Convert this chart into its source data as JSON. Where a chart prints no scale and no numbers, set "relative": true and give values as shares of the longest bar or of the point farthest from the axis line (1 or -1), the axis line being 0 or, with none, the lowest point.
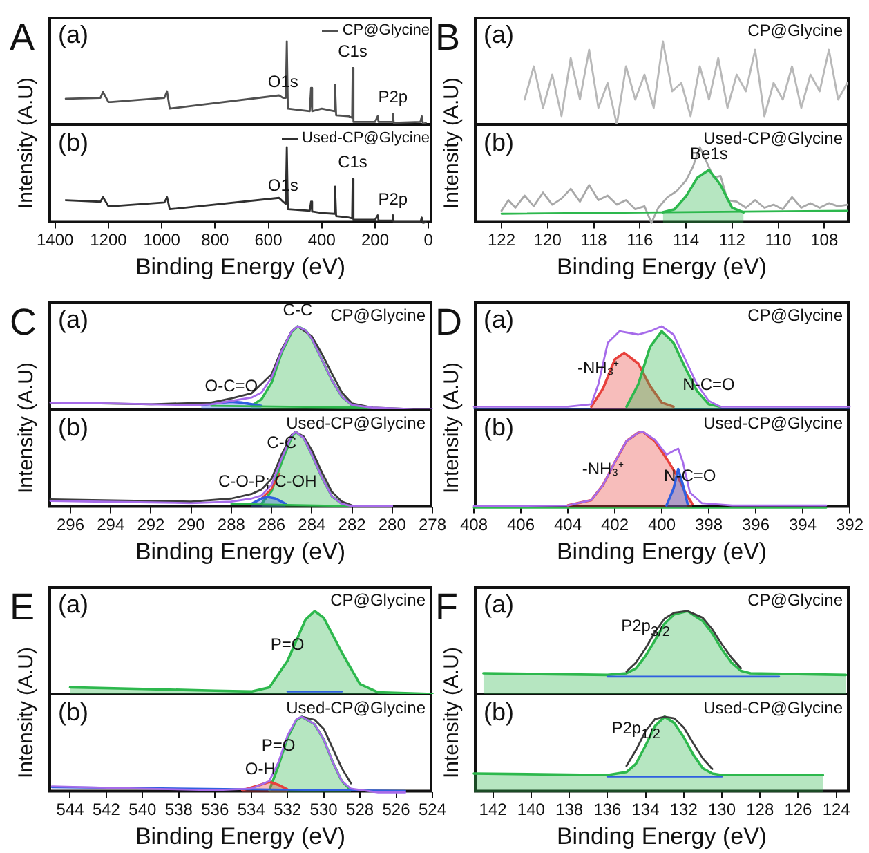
{
  "chart_data": [
    {
      "type": "line",
      "relative": true,
      "title": "A",
      "ylabel": "Intensity (A.U)",
      "xlim": [
        1425,
        -15
      ],
      "tick_labels": false,
      "legend": "top right",
      "annotations": [
        "(a)",
        {
          "text": "O1s",
          "x": 545,
          "y": 0.32
        },
        {
          "text": "C1s",
          "x": 284,
          "y": 0.68
        },
        {
          "text": "P2p",
          "x": 133,
          "y": 0.13
        }
      ],
      "series": [
        {
          "name": "CP@Glycine",
          "color": "#505050",
          "x": [
            1360,
            1230,
            1220,
            1200,
            1190,
            990,
            980,
            970,
            560,
            545,
            535,
            531,
            527,
            445,
            440,
            436,
            400,
            352,
            350,
            346,
            300,
            286,
            284,
            281,
            200,
            190,
            187,
            135,
            133,
            130,
            30,
            25,
            20,
            10
          ],
          "values": [
            0.31,
            0.32,
            0.39,
            0.27,
            0.27,
            0.32,
            0.4,
            0.19,
            0.35,
            0.32,
            0.32,
            1,
            0.19,
            0.16,
            0.44,
            0.16,
            0.19,
            0.16,
            0.48,
            0.11,
            0.1,
            0.08,
            0.68,
            0.03,
            0.03,
            0.1,
            0.03,
            0.03,
            0.13,
            0.02,
            0.03,
            0.1,
            0,
            0.02
          ]
        }
      ]
    },
    {
      "type": "line",
      "relative": true,
      "xlabel": "Binding Energy (eV)",
      "xlim": [
        1425,
        -15
      ],
      "xticks": [
        1400,
        1200,
        1000,
        800,
        600,
        400,
        200,
        0
      ],
      "tick_labels": "x",
      "legend": "top right",
      "annotations": [
        "(b)",
        {
          "text": "O1s",
          "x": 545,
          "y": 0.28
        },
        {
          "text": "C1s",
          "x": 284,
          "y": 0.58
        },
        {
          "text": "P2p",
          "x": 133,
          "y": 0.1
        }
      ],
      "series": [
        {
          "name": "Used-CP@Glycine",
          "color": "#303030",
          "x": [
            1360,
            1230,
            1220,
            1200,
            1190,
            990,
            980,
            970,
            560,
            545,
            535,
            531,
            527,
            445,
            440,
            436,
            400,
            352,
            350,
            346,
            300,
            286,
            284,
            281,
            200,
            190,
            187,
            135,
            133,
            130,
            30,
            25,
            20,
            10
          ],
          "values": [
            0.3,
            0.28,
            0.34,
            0.22,
            0.22,
            0.27,
            0.34,
            0.18,
            0.33,
            0.28,
            0.25,
            1,
            0.18,
            0.16,
            0.28,
            0.15,
            0.13,
            0.12,
            0.48,
            0.09,
            0.07,
            0.06,
            0.58,
            0.04,
            0.04,
            0.1,
            0.03,
            0.03,
            0.1,
            0.01,
            0.01,
            0.07,
            0,
            0.01
          ]
        }
      ]
    },
    {
      "type": "line",
      "relative": true,
      "title": "B",
      "ylabel": "Intensity (A.U)",
      "xlim": [
        123.2,
        106.9
      ],
      "tick_labels": false,
      "annotations": [
        "(a)",
        "CP@Glycine"
      ],
      "series": [
        {
          "color": "#b8b8b8",
          "x": [
            121,
            120.6,
            120.2,
            119.8,
            119.4,
            119,
            118.6,
            118.2,
            117.8,
            117.4,
            117,
            116.6,
            116.2,
            115.8,
            115.4,
            115,
            114.6,
            114.2,
            113.8,
            113.4,
            113,
            112.6,
            112.2,
            111.8,
            111.4,
            111,
            110.6,
            110.2,
            109.8,
            109.4,
            109,
            108.6,
            108.2,
            107.8,
            107.4,
            107
          ],
          "values": [
            0.3,
            0.7,
            0.2,
            0.6,
            0.1,
            0.8,
            0.3,
            0.9,
            0.2,
            0.5,
            0,
            0.7,
            0.3,
            0.6,
            0.2,
            1,
            0.4,
            0.5,
            0.1,
            0.7,
            0.3,
            0.8,
            0.2,
            0.6,
            0.4,
            0.9,
            0.1,
            0.5,
            0.3,
            0.7,
            0.2,
            0.6,
            0.4,
            0.9,
            0.3,
            0.5
          ]
        }
      ]
    },
    {
      "type": "line",
      "relative": true,
      "xlabel": "Binding Energy (eV)",
      "xlim": [
        123.2,
        106.9
      ],
      "xticks": [
        122,
        120,
        118,
        116,
        114,
        112,
        110,
        108
      ],
      "tick_labels": "x",
      "annotations": [
        "(b)",
        "Used-CP@Glycine",
        {
          "text": "Be1s",
          "x": 113,
          "y": 0.7
        }
      ],
      "series": [
        {
          "color": "#a8a8a8",
          "x": [
            122,
            121.7,
            121.4,
            121,
            120.6,
            120.2,
            119.8,
            119.4,
            119,
            118.6,
            118.2,
            117.8,
            117.4,
            117,
            116.6,
            116.2,
            115.8,
            115.5,
            115.2,
            114.8,
            114.4,
            114,
            113.7,
            113.4,
            113.1,
            112.8,
            112.5,
            112.2,
            111.8,
            111.4,
            111,
            110.6,
            110.2,
            109.8,
            109.4,
            109,
            108.6,
            108.2,
            107.8,
            107.4,
            107
          ],
          "values": [
            0.16,
            0.3,
            0.2,
            0.36,
            0.22,
            0.4,
            0.24,
            0.32,
            0.45,
            0.28,
            0.5,
            0.3,
            0.36,
            0.24,
            0.3,
            0.18,
            0.22,
            0,
            0.2,
            0.34,
            0.42,
            0.56,
            0.74,
            1,
            0.8,
            0.6,
            0.62,
            0.3,
            0.28,
            0.2,
            0.3,
            0.2,
            0.24,
            0.18,
            0.34,
            0.2,
            0.26,
            0.2,
            0.26,
            0.22,
            0.24
          ]
        },
        {
          "color": "#2db84d",
          "x": [
            122,
            107
          ],
          "values": [
            0.12,
            0.16
          ]
        },
        {
          "type": "area",
          "color": "#2db84d",
          "x": [
            115,
            114.5,
            114,
            113.5,
            113,
            112.5,
            112,
            111.5
          ],
          "values": [
            0.14,
            0.18,
            0.35,
            0.6,
            0.7,
            0.5,
            0.2,
            0.14
          ]
        }
      ]
    },
    {
      "type": "line",
      "relative": true,
      "title": "C",
      "ylabel": "Intensity (A.U)",
      "xlim": [
        297.1,
        278
      ],
      "tick_labels": false,
      "annotations": [
        "(a)",
        "CP@Glycine",
        {
          "text": "C-C",
          "x": 284.7,
          "y": 1
        },
        {
          "text": "O-C=O",
          "x": 288,
          "y": 0.09
        }
      ],
      "series": [
        {
          "type": "area",
          "color": "#2db84d",
          "x": [
            287,
            286.5,
            286,
            285.5,
            285,
            284.7,
            284.3,
            284,
            283.5,
            283,
            282.5,
            282,
            281.5
          ],
          "values": [
            0.04,
            0.12,
            0.32,
            0.68,
            0.93,
            1,
            0.95,
            0.85,
            0.6,
            0.35,
            0.15,
            0.05,
            0.03
          ]
        },
        {
          "type": "area",
          "color": "#2f5fe0",
          "x": [
            289.5,
            288.5,
            288,
            287.5,
            286.5
          ],
          "values": [
            0.05,
            0.08,
            0.09,
            0.08,
            0.04
          ]
        },
        {
          "color": "#2db84d",
          "x": [
            289,
            281
          ],
          "values": [
            0.04,
            0.02
          ]
        },
        {
          "color": "#3c3c3c",
          "x": [
            297,
            292,
            289,
            288,
            287,
            286,
            285.5,
            285,
            284.7,
            284,
            283.5,
            283,
            282.5,
            282,
            281,
            279
          ],
          "values": [
            0.08,
            0.06,
            0.08,
            0.13,
            0.19,
            0.42,
            0.72,
            0.94,
            1,
            0.88,
            0.67,
            0.43,
            0.2,
            0.07,
            0.02,
            0
          ]
        },
        {
          "color": "#a66bea",
          "x": [
            297,
            294,
            292,
            290,
            289,
            288,
            287,
            286.5,
            286,
            285.5,
            285,
            284.7,
            284.3,
            284,
            283.5,
            283,
            282.5,
            282,
            281,
            279,
            278
          ],
          "values": [
            0.08,
            0.07,
            0.06,
            0.05,
            0.06,
            0.1,
            0.14,
            0.2,
            0.38,
            0.7,
            0.94,
            1,
            0.95,
            0.85,
            0.6,
            0.35,
            0.15,
            0.05,
            0.02,
            0,
            0
          ]
        }
      ]
    },
    {
      "type": "line",
      "relative": true,
      "xlabel": "Binding Energy (eV)",
      "xlim": [
        297.1,
        278
      ],
      "xticks": [
        296,
        294,
        292,
        290,
        288,
        286,
        284,
        282,
        280,
        278
      ],
      "tick_labels": "x",
      "annotations": [
        "(b)",
        "Used-CP@Glycine",
        {
          "text": "C-C",
          "x": 285.5,
          "y": 0.65
        },
        {
          "text": "C-O-P; C-OH",
          "x": 286.2,
          "y": 0.14
        }
      ],
      "series": [
        {
          "type": "area",
          "color": "#2db84d",
          "x": [
            286.5,
            286,
            285.5,
            285,
            284.8,
            284.4,
            284,
            283.5,
            283,
            282.5
          ],
          "values": [
            0.05,
            0.22,
            0.6,
            0.93,
            1,
            0.92,
            0.7,
            0.4,
            0.15,
            0.05
          ]
        },
        {
          "color": "#e8413c",
          "x": [
            287,
            286.5,
            286,
            285.6
          ],
          "values": [
            0.05,
            0.12,
            0.25,
            0.45
          ]
        },
        {
          "type": "area",
          "color": "#2f5fe0",
          "x": [
            287,
            286.5,
            286.2,
            285.8,
            285.3
          ],
          "values": [
            0.05,
            0.12,
            0.14,
            0.12,
            0.05
          ]
        },
        {
          "color": "#2db84d",
          "x": [
            288,
            282
          ],
          "values": [
            0.05,
            0.02
          ]
        },
        {
          "color": "#3c3c3c",
          "x": [
            297,
            290,
            288,
            287,
            286.5,
            286,
            285.5,
            285,
            284.8,
            284.4,
            284,
            283.5,
            283,
            282.5,
            282
          ],
          "values": [
            0.11,
            0.08,
            0.12,
            0.18,
            0.24,
            0.38,
            0.7,
            0.96,
            1,
            0.94,
            0.76,
            0.47,
            0.21,
            0.08,
            0.03
          ]
        },
        {
          "color": "#a66bea",
          "x": [
            297,
            292,
            290,
            288,
            287,
            286.5,
            286,
            285.5,
            285,
            284.8,
            284.4,
            284,
            283.5,
            283,
            282.5,
            282,
            280
          ],
          "values": [
            0.09,
            0.07,
            0.06,
            0.08,
            0.12,
            0.16,
            0.3,
            0.65,
            0.95,
            1,
            0.92,
            0.7,
            0.4,
            0.15,
            0.05,
            0.02,
            0.02
          ]
        }
      ]
    },
    {
      "type": "line",
      "relative": true,
      "title": "D",
      "ylabel": "Intensity (A.U)",
      "xlim": [
        408,
        392
      ],
      "tick_labels": false,
      "annotations": [
        "(a)",
        "CP@Glycine",
        {
          "text": "-NH₃⁺",
          "x": 402.7,
          "y": 0.3
        },
        {
          "text": "N-C=O",
          "x": 398,
          "y": 0.1
        }
      ],
      "series": [
        {
          "color": "#2f5fe0",
          "x": [
            408,
            392
          ],
          "values": [
            0,
            0
          ]
        },
        {
          "type": "area",
          "color": "#e8413c",
          "x": [
            403,
            402.5,
            402,
            401.6,
            401,
            400.5,
            400,
            399.5
          ],
          "values": [
            0.03,
            0.25,
            0.6,
            0.68,
            0.55,
            0.28,
            0.08,
            0.03
          ]
        },
        {
          "type": "area",
          "color": "#2db84d",
          "x": [
            401.5,
            401,
            400.5,
            400,
            399.5,
            399,
            398.5,
            398,
            397.5
          ],
          "values": [
            0.03,
            0.3,
            0.75,
            0.94,
            0.8,
            0.5,
            0.22,
            0.06,
            0.03
          ]
        },
        {
          "color": "#a66bea",
          "x": [
            408,
            404,
            403,
            402.7,
            402.3,
            401.8,
            401,
            400.5,
            400,
            399.5,
            399,
            398.5,
            398,
            397.5,
            392
          ],
          "values": [
            0.03,
            0.03,
            0.06,
            0.3,
            0.8,
            0.94,
            0.9,
            0.94,
            1,
            0.9,
            0.6,
            0.3,
            0.1,
            0.03,
            0.03
          ]
        }
      ]
    },
    {
      "type": "line",
      "relative": true,
      "xlabel": "Binding Energy (eV)",
      "xlim": [
        408,
        392
      ],
      "xticks": [
        408,
        406,
        404,
        402,
        400,
        398,
        396,
        394,
        392
      ],
      "tick_labels": "x",
      "annotations": [
        "(b)",
        "Used-CP@Glycine",
        {
          "text": "-NH₃⁺",
          "x": 402.5,
          "y": 0.3
        },
        {
          "text": "N-C=O",
          "x": 398.8,
          "y": 0.2
        }
      ],
      "series": [
        {
          "color": "#2db84d",
          "x": [
            408,
            393
          ],
          "values": [
            0,
            0
          ]
        },
        {
          "type": "area",
          "color": "#e8413c",
          "x": [
            404,
            403,
            402.5,
            402,
            401.5,
            401,
            400.8,
            400.3,
            399.8,
            399.3,
            399,
            398.7
          ],
          "values": [
            0.03,
            0.1,
            0.3,
            0.6,
            0.88,
            0.99,
            1,
            0.88,
            0.65,
            0.4,
            0.2,
            0.05
          ]
        },
        {
          "type": "area",
          "color": "#2f5fe0",
          "x": [
            399.8,
            399.5,
            399.3,
            399.1,
            398.9
          ],
          "values": [
            0.03,
            0.25,
            0.51,
            0.3,
            0.05
          ]
        },
        {
          "color": "#a66bea",
          "x": [
            408,
            404,
            403,
            402.5,
            402,
            401.5,
            401,
            400.8,
            400.3,
            399.8,
            399.5,
            399.3,
            399.1,
            398.8,
            398.3,
            397,
            393
          ],
          "values": [
            0.02,
            0.03,
            0.1,
            0.3,
            0.6,
            0.88,
            0.99,
            1,
            0.9,
            0.7,
            0.75,
            0.78,
            0.6,
            0.2,
            0.06,
            0.03,
            0.03
          ]
        }
      ]
    },
    {
      "type": "line",
      "relative": true,
      "title": "E",
      "ylabel": "Intensity (A.U)",
      "xlim": [
        545.2,
        524
      ],
      "tick_labels": false,
      "annotations": [
        "(a)",
        "CP@Glycine",
        {
          "text": "P=O",
          "x": 532,
          "y": 0.4
        }
      ],
      "series": [
        {
          "type": "area",
          "color": "#2db84d",
          "x": [
            544,
            540,
            536,
            534,
            533,
            532,
            531,
            530.5,
            530,
            529,
            528,
            527,
            524
          ],
          "values": [
            0.08,
            0.06,
            0.04,
            0.03,
            0.08,
            0.4,
            0.9,
            1,
            0.92,
            0.5,
            0.12,
            0.02,
            0
          ]
        },
        {
          "color": "#2f5fe0",
          "x": [
            532,
            529
          ],
          "values": [
            0.03,
            0.03
          ]
        }
      ]
    },
    {
      "type": "line",
      "relative": true,
      "xlabel": "Binding Energy (eV)",
      "xlim": [
        545.2,
        524
      ],
      "xticks": [
        544,
        542,
        540,
        538,
        536,
        534,
        532,
        530,
        528,
        526,
        524
      ],
      "tick_labels": "x",
      "annotations": [
        "(b)",
        "Used-CP@Glycine",
        {
          "text": "P=O",
          "x": 532.5,
          "y": 0.4
        },
        {
          "text": "O-H",
          "x": 533.5,
          "y": 0.1
        }
      ],
      "series": [
        {
          "type": "area",
          "color": "#2db84d",
          "x": [
            533,
            532.5,
            532,
            531.5,
            531.2,
            530.5,
            530,
            529.5,
            529,
            528.5
          ],
          "values": [
            0.03,
            0.35,
            0.72,
            0.96,
            1,
            0.9,
            0.7,
            0.4,
            0.15,
            0.03
          ]
        },
        {
          "type": "area",
          "color": "#e8413c",
          "x": [
            534.5,
            533.5,
            533,
            532.5,
            532
          ],
          "values": [
            0.03,
            0.1,
            0.14,
            0.1,
            0.04
          ]
        },
        {
          "color": "#2f5fe0",
          "x": [
            545,
            525.5
          ],
          "values": [
            0.07,
            0.02
          ]
        },
        {
          "color": "#3c3c3c",
          "x": [
            531.2,
            530.5,
            530,
            529.5,
            529,
            528.5
          ],
          "values": [
            1,
            0.96,
            0.84,
            0.58,
            0.32,
            0.12
          ]
        },
        {
          "color": "#a66bea",
          "x": [
            545,
            540,
            536,
            534,
            533,
            532.5,
            532,
            531.5,
            531.2,
            530.5,
            530,
            529.5,
            529,
            528.5,
            527,
            525.5
          ],
          "values": [
            0.08,
            0.05,
            0.03,
            0.05,
            0.15,
            0.4,
            0.75,
            0.97,
            1,
            0.9,
            0.7,
            0.4,
            0.15,
            0.05,
            0,
            0
          ]
        }
      ]
    },
    {
      "type": "line",
      "relative": true,
      "title": "F",
      "ylabel": "Intensity (A.U)",
      "xlim": [
        143,
        123.3
      ],
      "tick_labels": false,
      "annotations": [
        "(a)",
        "CP@Glycine",
        {
          "text": "P2p$_{3/2}$",
          "x": 134,
          "y": 0.55
        }
      ],
      "series": [
        {
          "type": "area",
          "color": "#2db84d",
          "x": [
            142.5,
            136,
            135,
            134.5,
            134,
            133.5,
            133,
            132.5,
            131.8,
            131,
            130.5,
            130,
            129.5,
            129,
            128.5,
            123.5
          ],
          "values": [
            0.25,
            0.23,
            0.25,
            0.31,
            0.46,
            0.65,
            0.85,
            0.96,
            1,
            0.88,
            0.73,
            0.54,
            0.38,
            0.28,
            0.25,
            0.23
          ]
        },
        {
          "color": "#3c3c3c",
          "x": [
            135,
            134.5,
            134,
            133.5,
            133,
            132.5,
            131.8,
            131,
            130.5,
            130,
            129.5,
            129
          ],
          "values": [
            0.27,
            0.38,
            0.55,
            0.75,
            0.91,
            0.98,
            1,
            0.92,
            0.78,
            0.6,
            0.44,
            0.31
          ]
        },
        {
          "color": "#2f5fe0",
          "x": [
            136,
            127
          ],
          "values": [
            0.21,
            0.21
          ]
        }
      ]
    },
    {
      "type": "line",
      "relative": true,
      "xlabel": "Binding Energy (eV)",
      "xlim": [
        143,
        123.3
      ],
      "xticks": [
        142,
        140,
        138,
        136,
        134,
        132,
        130,
        128,
        126,
        124
      ],
      "tick_labels": "x",
      "annotations": [
        "(b)",
        "Used-CP@Glycine",
        {
          "text": "P2p$_{1/2}$",
          "x": 134.5,
          "y": 0.56
        }
      ],
      "series": [
        {
          "type": "area",
          "color": "#2db84d",
          "x": [
            143,
            136,
            135,
            134.5,
            134,
            133.5,
            133,
            132.5,
            132,
            131.5,
            131,
            130.5,
            130,
            124.7
          ],
          "values": [
            0.25,
            0.23,
            0.27,
            0.38,
            0.62,
            0.88,
            1,
            0.92,
            0.73,
            0.5,
            0.32,
            0.25,
            0.23,
            0.23
          ]
        },
        {
          "color": "#3c3c3c",
          "x": [
            135,
            134.5,
            134,
            133.5,
            133,
            132.5,
            132,
            131.5,
            131,
            130.5
          ],
          "values": [
            0.35,
            0.56,
            0.81,
            0.97,
            1,
            0.98,
            0.86,
            0.65,
            0.45,
            0.31
          ]
        },
        {
          "color": "#2f5fe0",
          "x": [
            136,
            130
          ],
          "values": [
            0.21,
            0.21
          ]
        }
      ]
    }
  ]
}
